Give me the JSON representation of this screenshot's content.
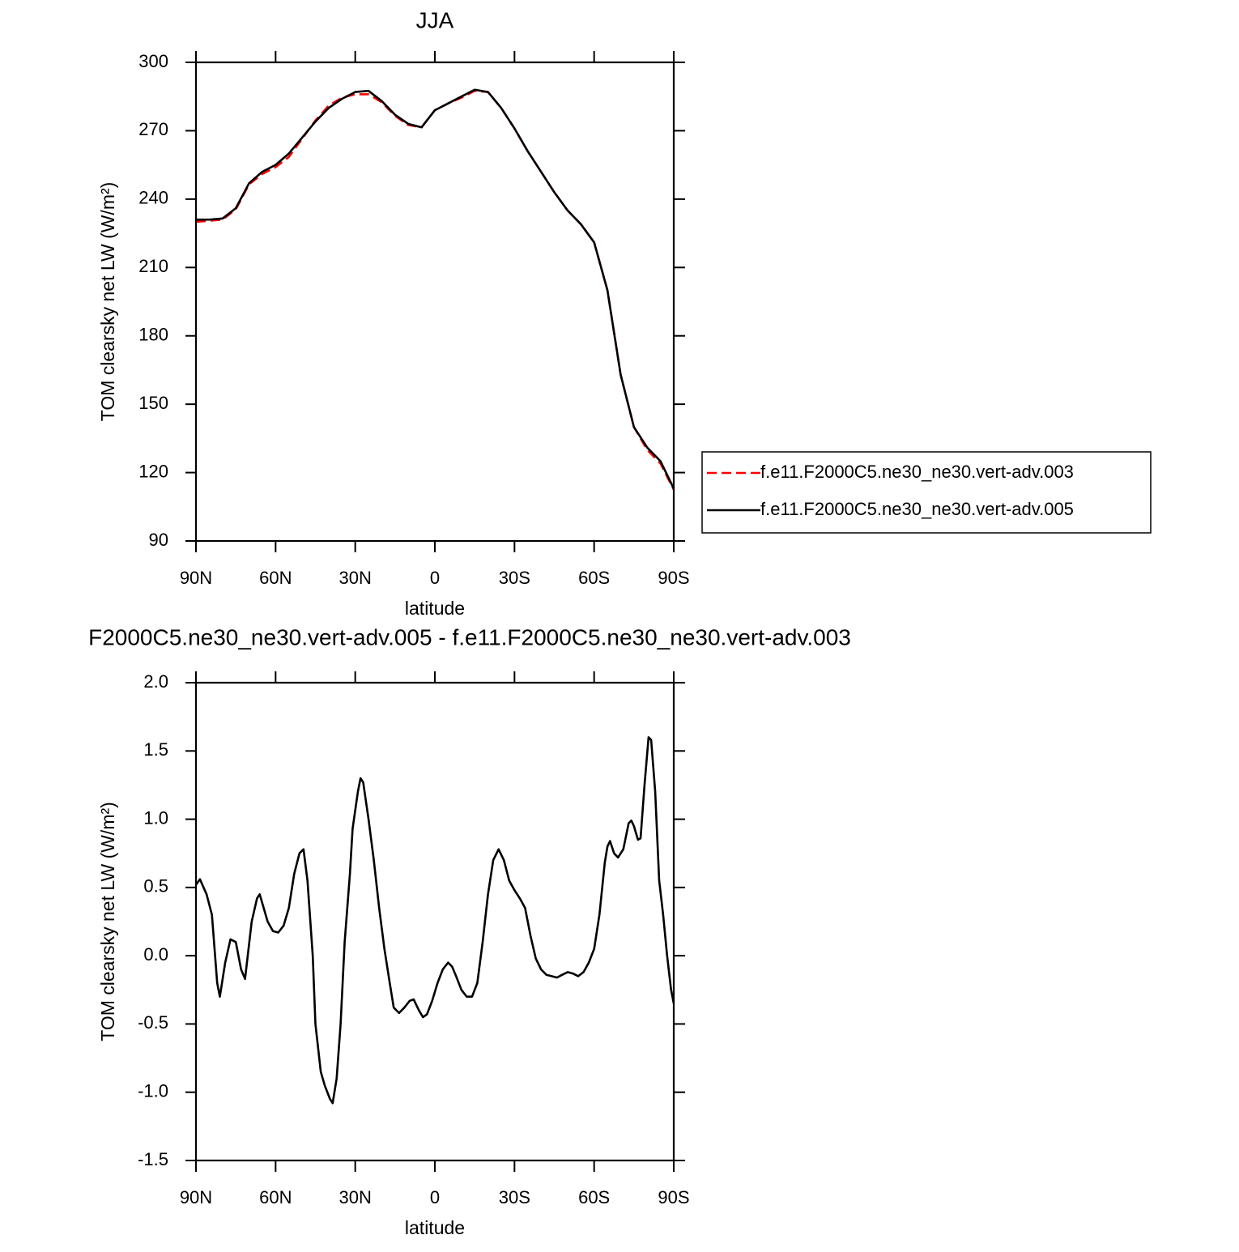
{
  "chart_data": [
    {
      "type": "line",
      "title": "JJA",
      "xlabel": "latitude",
      "ylabel": "TOM clearsky net LW (W/m²)",
      "x": [
        90,
        85,
        80,
        75,
        70,
        65,
        60,
        55,
        50,
        45,
        40,
        35,
        30,
        25,
        20,
        15,
        10,
        5,
        0,
        -5,
        -10,
        -15,
        -20,
        -25,
        -30,
        -35,
        -40,
        -45,
        -50,
        -55,
        -60,
        -65,
        -70,
        -75,
        -80,
        -85,
        -90
      ],
      "series": [
        {
          "name": "f.e11.F2000C5.ne30_ne30.vert-adv.003",
          "color": "#ff0000",
          "dashed": true,
          "values": [
            230,
            230.5,
            231,
            235.5,
            246.5,
            251,
            254,
            258.5,
            266.5,
            274.5,
            281,
            284.5,
            286,
            286,
            282.5,
            276.5,
            272.5,
            271.5,
            279,
            282,
            284.5,
            287.5,
            287,
            280,
            271,
            261,
            252,
            243,
            235,
            229,
            221,
            200,
            163,
            140,
            130,
            124,
            112.5
          ]
        },
        {
          "name": "f.e11.F2000C5.ne30_ne30.vert-adv.005",
          "color": "#000000",
          "dashed": false,
          "values": [
            231,
            231,
            231.5,
            236,
            247,
            252,
            255,
            260,
            267,
            274,
            280,
            284,
            287,
            287.5,
            283,
            277,
            273,
            271.5,
            279,
            282,
            285,
            288,
            287,
            280,
            271,
            261,
            252,
            243,
            235,
            229,
            221,
            200,
            163,
            140,
            131,
            125,
            113
          ]
        }
      ],
      "xlim": [
        90,
        -90
      ],
      "xticks": [
        {
          "value": 90,
          "label": "90N"
        },
        {
          "value": 60,
          "label": "60N"
        },
        {
          "value": 30,
          "label": "30N"
        },
        0,
        {
          "value": -30,
          "label": "30S"
        },
        {
          "value": -60,
          "label": "60S"
        },
        {
          "value": -90,
          "label": "90S"
        }
      ],
      "ylim": [
        90,
        300
      ],
      "yticks": [
        90,
        120,
        150,
        180,
        210,
        240,
        270,
        300
      ],
      "grid": false,
      "legend": "right"
    },
    {
      "type": "line",
      "title": "F2000C5.ne30_ne30.vert-adv.005 - f.e11.F2000C5.ne30_ne30.vert-adv.003",
      "xlabel": "latitude",
      "ylabel": "TOM clearsky net LW (W/m²)",
      "x": [
        90,
        88.5,
        86,
        84,
        82,
        81,
        79,
        77,
        75,
        73,
        71.5,
        69,
        67,
        66,
        63,
        61,
        59,
        57,
        55,
        53,
        51,
        49.5,
        48,
        46,
        45,
        43,
        41.5,
        39.5,
        38.5,
        37,
        35.5,
        34,
        32,
        31,
        29,
        28,
        27,
        25,
        23,
        21,
        19,
        17,
        15.5,
        13.5,
        11.5,
        9.5,
        8,
        6,
        4.5,
        3,
        1,
        -1,
        -3,
        -5,
        -6.5,
        -8,
        -10,
        -12,
        -14,
        -16,
        -18,
        -20,
        -22,
        -24,
        -26,
        -28,
        -30,
        -32,
        -34,
        -36,
        -38,
        -40,
        -42,
        -44,
        -46,
        -48,
        -50,
        -52,
        -54,
        -56,
        -58,
        -60,
        -62,
        -64,
        -65,
        -66,
        -67.5,
        -69,
        -71,
        -73,
        -74,
        -75,
        -76.5,
        -77.5,
        -79,
        -80.5,
        -81.5,
        -83,
        -84.5,
        -86,
        -87.5,
        -89,
        -90
      ],
      "values": [
        0.52,
        0.56,
        0.45,
        0.3,
        -0.2,
        -0.3,
        -0.05,
        0.12,
        0.1,
        -0.1,
        -0.17,
        0.25,
        0.42,
        0.45,
        0.25,
        0.18,
        0.17,
        0.22,
        0.35,
        0.6,
        0.75,
        0.78,
        0.55,
        0.0,
        -0.5,
        -0.85,
        -0.95,
        -1.05,
        -1.08,
        -0.9,
        -0.5,
        0.1,
        0.6,
        0.93,
        1.2,
        1.3,
        1.27,
        1.0,
        0.7,
        0.35,
        0.05,
        -0.2,
        -0.38,
        -0.42,
        -0.38,
        -0.33,
        -0.32,
        -0.4,
        -0.45,
        -0.43,
        -0.33,
        -0.2,
        -0.1,
        -0.05,
        -0.08,
        -0.15,
        -0.25,
        -0.3,
        -0.3,
        -0.2,
        0.1,
        0.45,
        0.7,
        0.78,
        0.7,
        0.55,
        0.48,
        0.42,
        0.35,
        0.15,
        -0.02,
        -0.1,
        -0.14,
        -0.15,
        -0.16,
        -0.14,
        -0.12,
        -0.13,
        -0.15,
        -0.12,
        -0.05,
        0.05,
        0.3,
        0.68,
        0.8,
        0.84,
        0.75,
        0.72,
        0.78,
        0.97,
        0.99,
        0.95,
        0.85,
        0.86,
        1.25,
        1.6,
        1.58,
        1.2,
        0.55,
        0.3,
        0.0,
        -0.25,
        -0.35
      ],
      "color": "#000000",
      "xlim": [
        90,
        -90
      ],
      "xticks": [
        {
          "value": 90,
          "label": "90N"
        },
        {
          "value": 60,
          "label": "60N"
        },
        {
          "value": 30,
          "label": "30N"
        },
        0,
        {
          "value": -30,
          "label": "30S"
        },
        {
          "value": -60,
          "label": "60S"
        },
        {
          "value": -90,
          "label": "90S"
        }
      ],
      "ylim": [
        -1.5,
        2.0
      ],
      "yticks": [
        -1.5,
        {
          "value": -1.0,
          "label": "-1.0"
        },
        -0.5,
        {
          "value": 0.0,
          "label": "0.0"
        },
        0.5,
        {
          "value": 1.0,
          "label": "1.0"
        },
        1.5,
        {
          "value": 2.0,
          "label": "2.0"
        }
      ],
      "grid": false
    }
  ]
}
